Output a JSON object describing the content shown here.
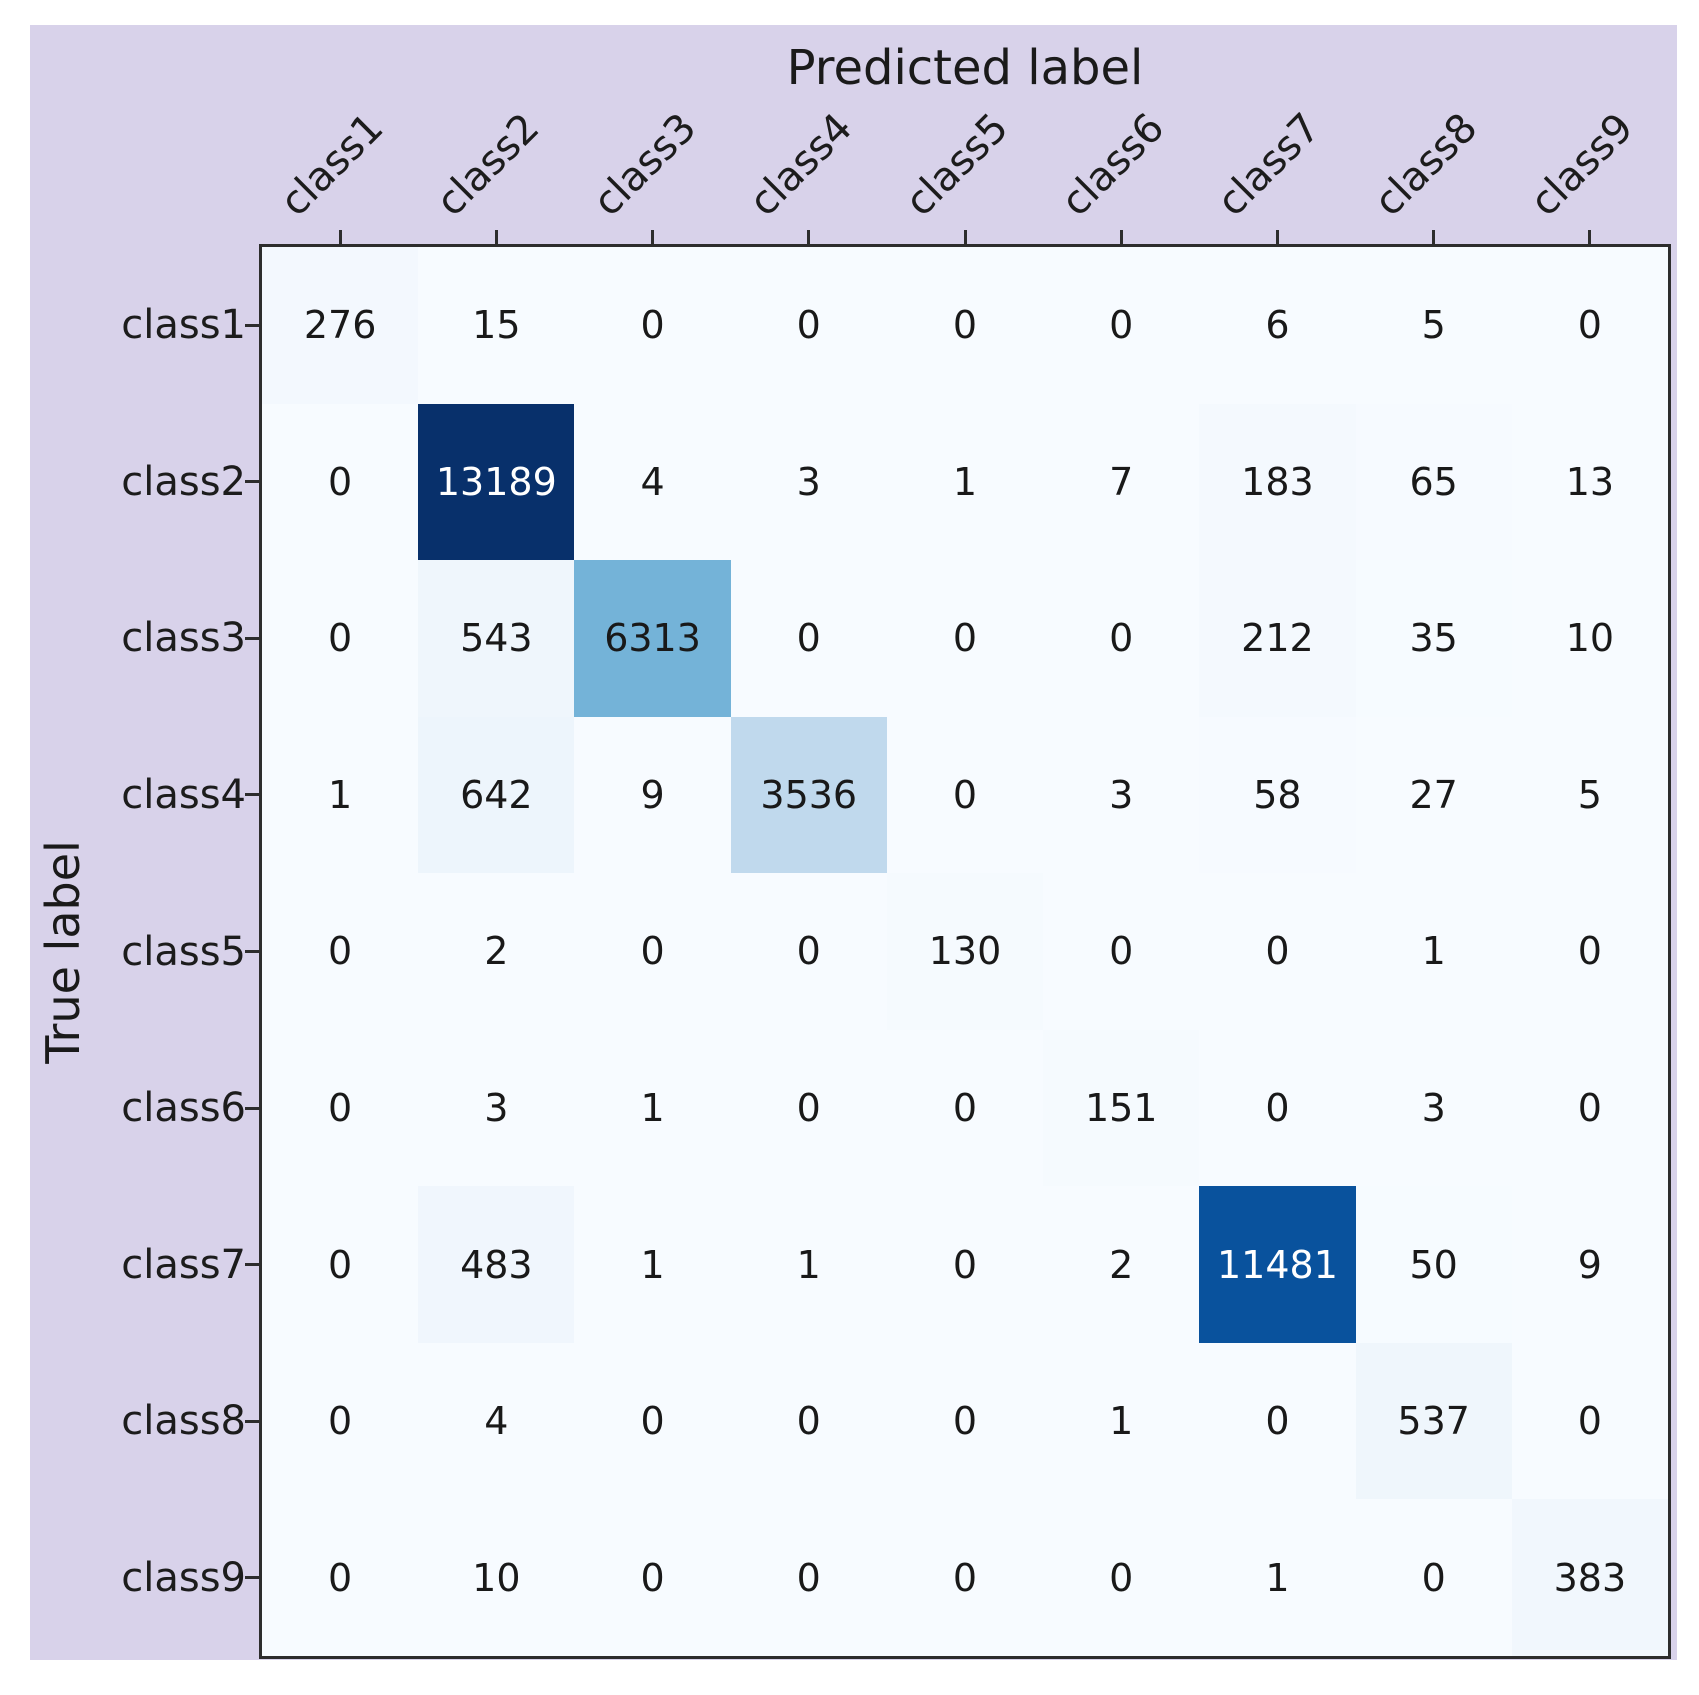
{
  "figure": {
    "x_axis_title": "Predicted label",
    "y_axis_title": "True label"
  },
  "chart_data": {
    "type": "heatmap",
    "subtype": "confusion-matrix",
    "x_axis_label": "Predicted label",
    "y_axis_label": "True label",
    "x_tick_labels": [
      "class1",
      "class2",
      "class3",
      "class4",
      "class5",
      "class6",
      "class7",
      "class8",
      "class9"
    ],
    "y_tick_labels": [
      "class1",
      "class2",
      "class3",
      "class4",
      "class5",
      "class6",
      "class7",
      "class8",
      "class9"
    ],
    "matrix": [
      [
        276,
        15,
        0,
        0,
        0,
        0,
        6,
        5,
        0
      ],
      [
        0,
        13189,
        4,
        3,
        1,
        7,
        183,
        65,
        13
      ],
      [
        0,
        543,
        6313,
        0,
        0,
        0,
        212,
        35,
        10
      ],
      [
        1,
        642,
        9,
        3536,
        0,
        3,
        58,
        27,
        5
      ],
      [
        0,
        2,
        0,
        0,
        130,
        0,
        0,
        1,
        0
      ],
      [
        0,
        3,
        1,
        0,
        0,
        151,
        0,
        3,
        0
      ],
      [
        0,
        483,
        1,
        1,
        0,
        2,
        11481,
        50,
        9
      ],
      [
        0,
        4,
        0,
        0,
        0,
        1,
        0,
        537,
        0
      ],
      [
        0,
        10,
        0,
        0,
        0,
        0,
        1,
        0,
        383
      ]
    ],
    "vmin": 0,
    "vmax": 13189,
    "colormap": "Blues",
    "colormap_stops": [
      [
        0.0,
        "#f7fbff"
      ],
      [
        0.125,
        "#deebf7"
      ],
      [
        0.25,
        "#c6dbef"
      ],
      [
        0.375,
        "#9ecae1"
      ],
      [
        0.5,
        "#6baed6"
      ],
      [
        0.625,
        "#4292c6"
      ],
      [
        0.75,
        "#2171b5"
      ],
      [
        0.875,
        "#08519c"
      ],
      [
        1.0,
        "#08306b"
      ]
    ],
    "grid": false,
    "legend": "none",
    "x_ticks_position": "top",
    "x_tick_label_rotation_deg": 45
  },
  "colors": {
    "page_background": "#ffffff",
    "figure_background": "#d8d2ea",
    "cell_base": "#f7fbff",
    "axes_border": "#2d2d2d",
    "tick_color": "#2d2d2d",
    "text_dark": "#191919",
    "text_light": "#ffffff"
  }
}
